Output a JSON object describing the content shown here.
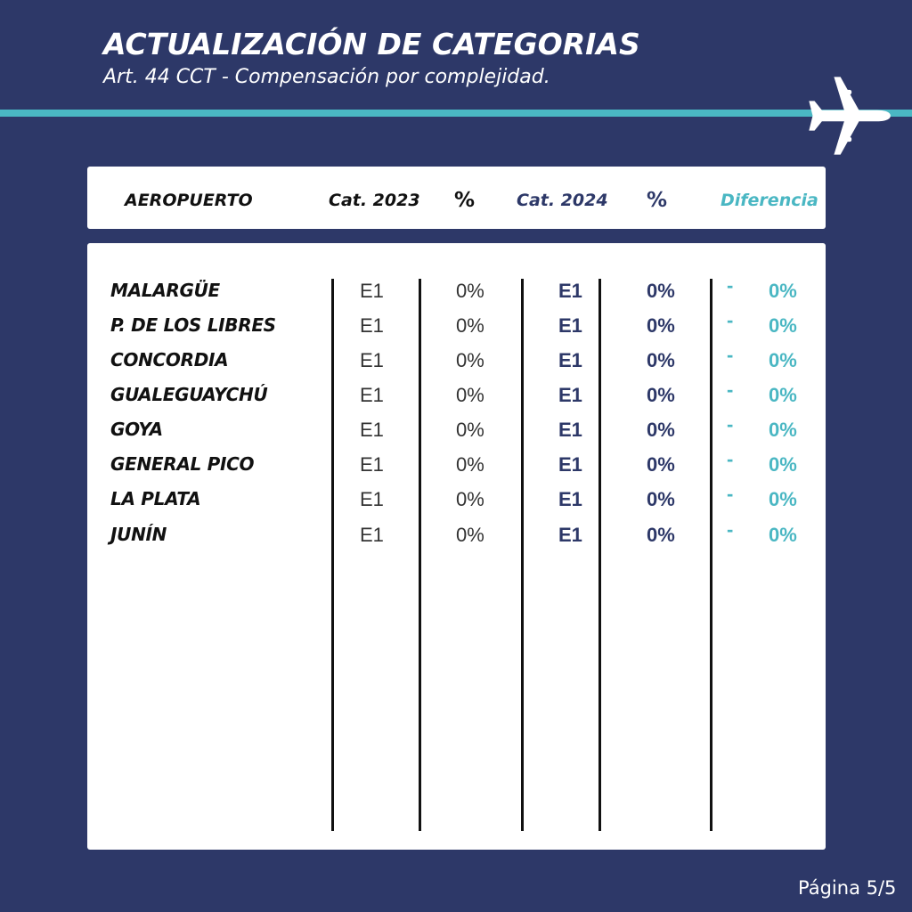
{
  "header": {
    "title": "ACTUALIZACIÓN DE CATEGORIAS",
    "subtitle": "Art. 44 CCT - Compensación por complejidad."
  },
  "table": {
    "columns": {
      "airport": "AEROPUERTO",
      "cat2023": "Cat. 2023",
      "pct2023": "%",
      "cat2024": "Cat. 2024",
      "pct2024": "%",
      "difference": "Diferencia"
    },
    "rows": [
      {
        "airport": "MALARGÜE",
        "cat2023": "E1",
        "pct2023": "0%",
        "cat2024": "E1",
        "pct2024": "0%",
        "dash": "-",
        "difference": "0%"
      },
      {
        "airport": "P. DE LOS LIBRES",
        "cat2023": "E1",
        "pct2023": "0%",
        "cat2024": "E1",
        "pct2024": "0%",
        "dash": "-",
        "difference": "0%"
      },
      {
        "airport": "CONCORDIA",
        "cat2023": "E1",
        "pct2023": "0%",
        "cat2024": "E1",
        "pct2024": "0%",
        "dash": "-",
        "difference": "0%"
      },
      {
        "airport": "GUALEGUAYCHÚ",
        "cat2023": "E1",
        "pct2023": "0%",
        "cat2024": "E1",
        "pct2024": "0%",
        "dash": "-",
        "difference": "0%"
      },
      {
        "airport": "GOYA",
        "cat2023": "E1",
        "pct2023": "0%",
        "cat2024": "E1",
        "pct2024": "0%",
        "dash": "-",
        "difference": "0%"
      },
      {
        "airport": "GENERAL PICO",
        "cat2023": "E1",
        "pct2023": "0%",
        "cat2024": "E1",
        "pct2024": "0%",
        "dash": "-",
        "difference": "0%"
      },
      {
        "airport": "LA PLATA",
        "cat2023": "E1",
        "pct2023": "0%",
        "cat2024": "E1",
        "pct2024": "0%",
        "dash": "-",
        "difference": "0%"
      },
      {
        "airport": "JUNÍN",
        "cat2023": "E1",
        "pct2023": "0%",
        "cat2024": "E1",
        "pct2024": "0%",
        "dash": "-",
        "difference": "0%"
      }
    ]
  },
  "footer": {
    "page": "Página 5/5"
  },
  "colors": {
    "background": "#2d3868",
    "accent": "#4ab7c3",
    "card": "#ffffff"
  },
  "icons": {
    "decor": "airplane-icon"
  }
}
